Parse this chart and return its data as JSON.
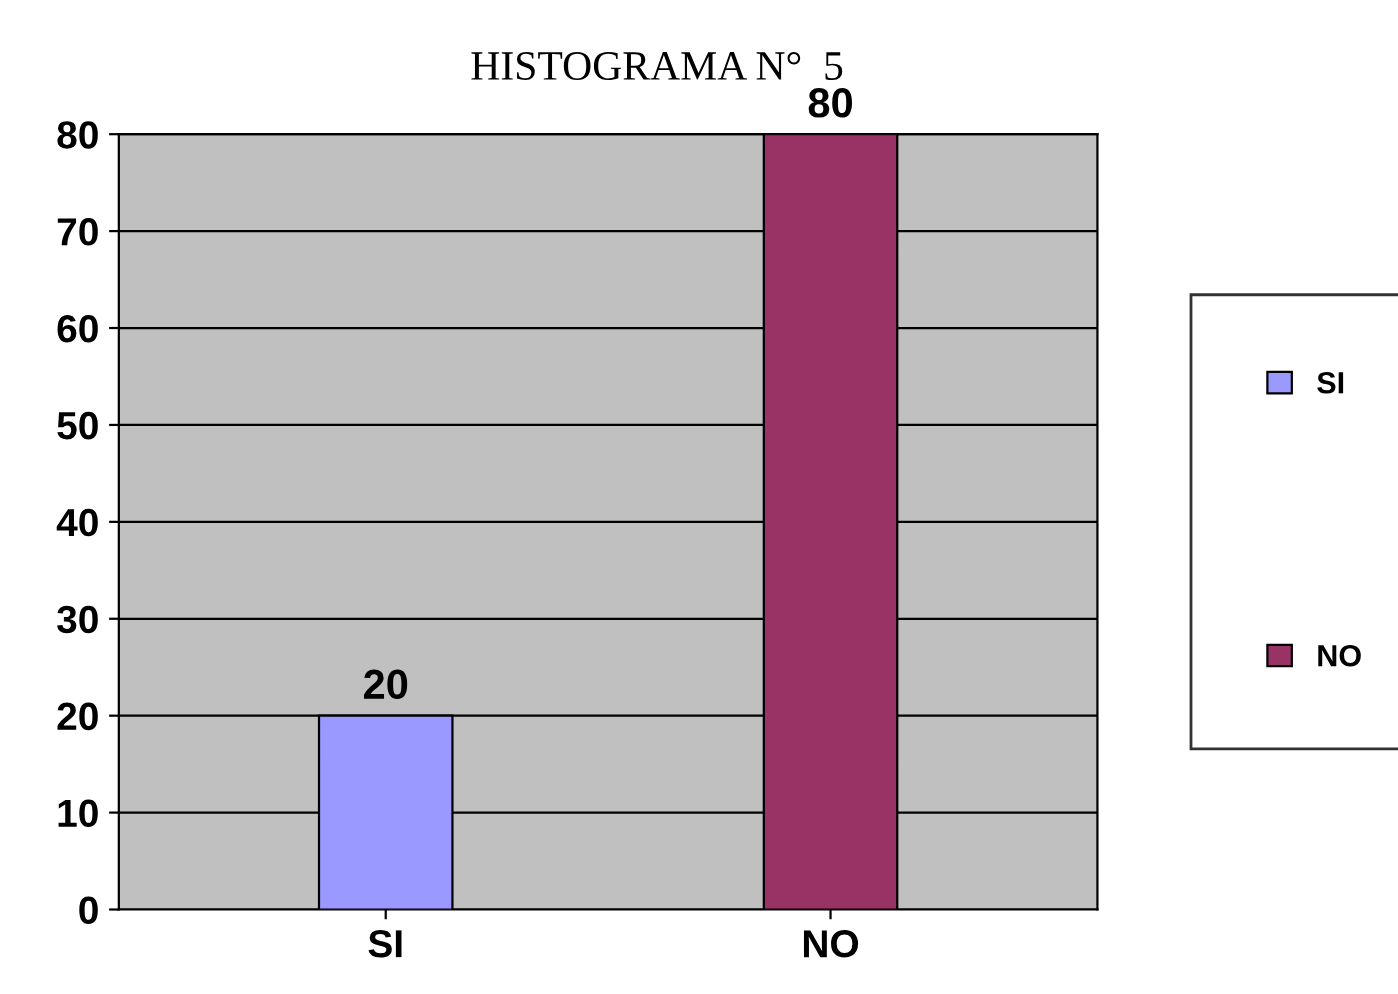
{
  "chart_data": {
    "type": "bar",
    "title": "HISTOGRAMA N°  5",
    "categories": [
      "SI",
      "NO"
    ],
    "series": [
      {
        "name": "SI",
        "color": "#9999ff",
        "values": [
          20,
          null
        ]
      },
      {
        "name": "NO",
        "color": "#993366",
        "values": [
          null,
          80
        ]
      }
    ],
    "ylim": [
      0,
      80
    ],
    "yticks": [
      0,
      10,
      20,
      30,
      40,
      50,
      60,
      70,
      80
    ],
    "grid": "y",
    "legend": "right",
    "data_labels": true
  }
}
